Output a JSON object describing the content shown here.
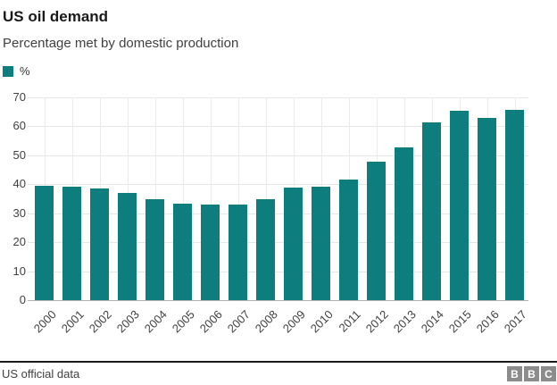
{
  "header": {
    "title": "US oil demand",
    "subtitle": "Percentage met by domestic production"
  },
  "legend": {
    "label": "%"
  },
  "footer": {
    "source": "US official data",
    "logo_blocks": [
      "B",
      "B",
      "C"
    ]
  },
  "colors": {
    "bar": "#0e7d7e",
    "gridline": "#e6e6e6",
    "vertical_gridline": "#ebebeb",
    "baseline": "#b0b0b0",
    "text": "#404040",
    "title_text": "#1a1a1a",
    "footer_rule": "#1a1a1a",
    "bbc_block_gray": "#8c8c8c"
  },
  "chart_data": {
    "type": "bar",
    "title": "US oil demand",
    "subtitle": "Percentage met by domestic production",
    "legend_entries": [
      "%"
    ],
    "legend_position": "top-left",
    "categories": [
      "2000",
      "2001",
      "2002",
      "2003",
      "2004",
      "2005",
      "2006",
      "2007",
      "2008",
      "2009",
      "2010",
      "2011",
      "2012",
      "2013",
      "2014",
      "2015",
      "2016",
      "2017"
    ],
    "values": [
      39.5,
      39.1,
      38.6,
      37.0,
      35.0,
      33.3,
      32.9,
      33.1,
      34.8,
      38.8,
      39.3,
      41.5,
      47.9,
      52.9,
      61.5,
      65.4,
      62.8,
      65.6
    ],
    "xlabel": "",
    "ylabel": "%",
    "ylim": [
      0,
      70
    ],
    "ytick_step": 10,
    "yticks": [
      0,
      10,
      20,
      30,
      40,
      50,
      60,
      70
    ],
    "grid": "horizontal-and-vertical",
    "x_tick_label_rotation_deg": -45
  }
}
